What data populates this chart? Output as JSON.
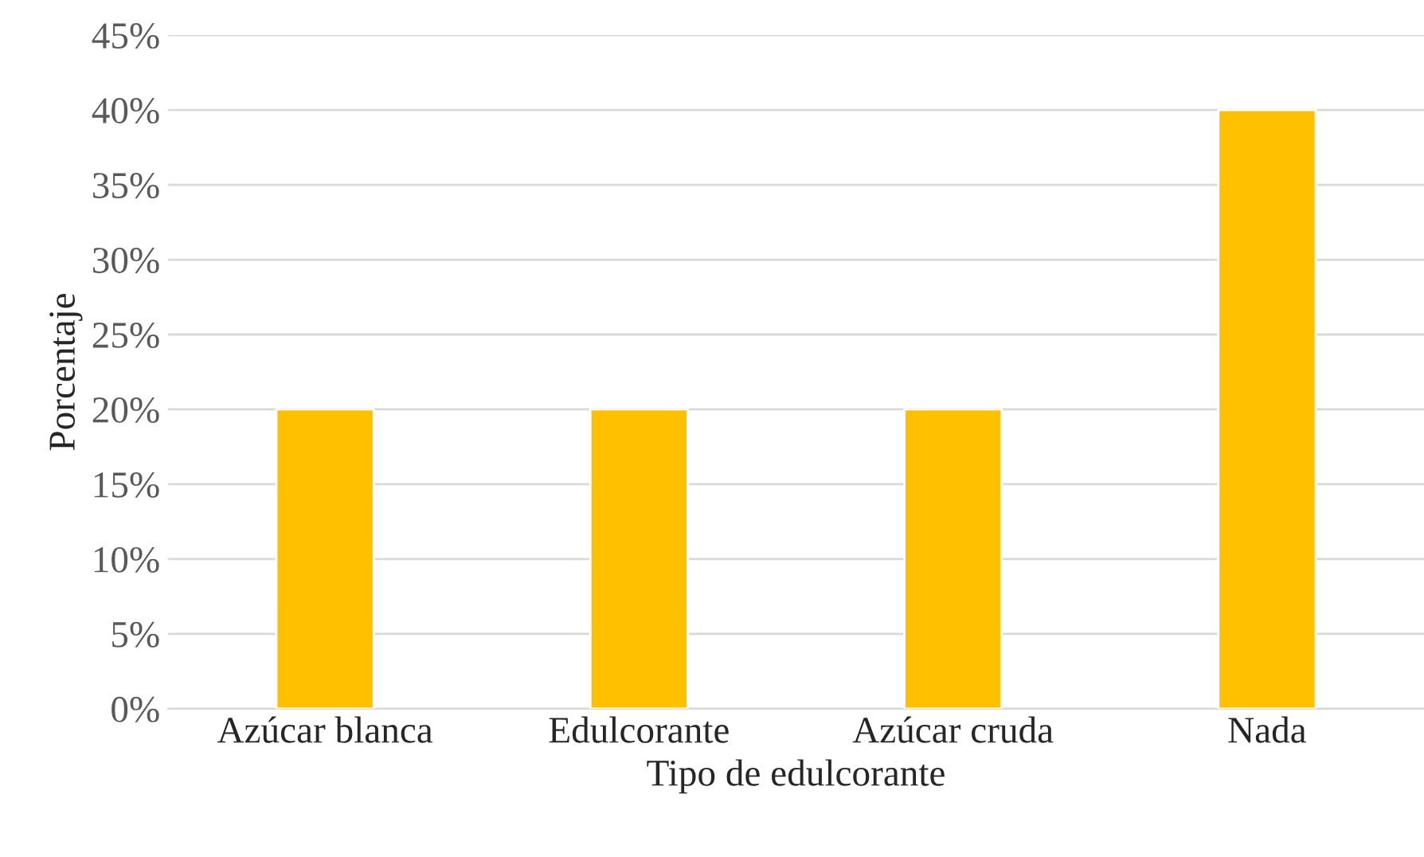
{
  "chart_data": {
    "type": "bar",
    "xlabel": "Tipo de edulcorante",
    "ylabel": "Porcentaje",
    "categories": [
      "Azúcar blanca",
      "Edulcorante",
      "Azúcar cruda",
      "Nada"
    ],
    "values": [
      20,
      20,
      20,
      40
    ],
    "color": "#ffc000",
    "ylim": [
      0,
      45
    ],
    "yticks": [
      {
        "value": 0,
        "label": "0%"
      },
      {
        "value": 5,
        "label": "5%"
      },
      {
        "value": 10,
        "label": "10%"
      },
      {
        "value": 15,
        "label": "15%"
      },
      {
        "value": 20,
        "label": "20%"
      },
      {
        "value": 25,
        "label": "25%"
      },
      {
        "value": 30,
        "label": "30%"
      },
      {
        "value": 35,
        "label": "35%"
      },
      {
        "value": 40,
        "label": "40%"
      },
      {
        "value": 45,
        "label": "45%"
      }
    ],
    "grid": "y",
    "legend": false
  }
}
